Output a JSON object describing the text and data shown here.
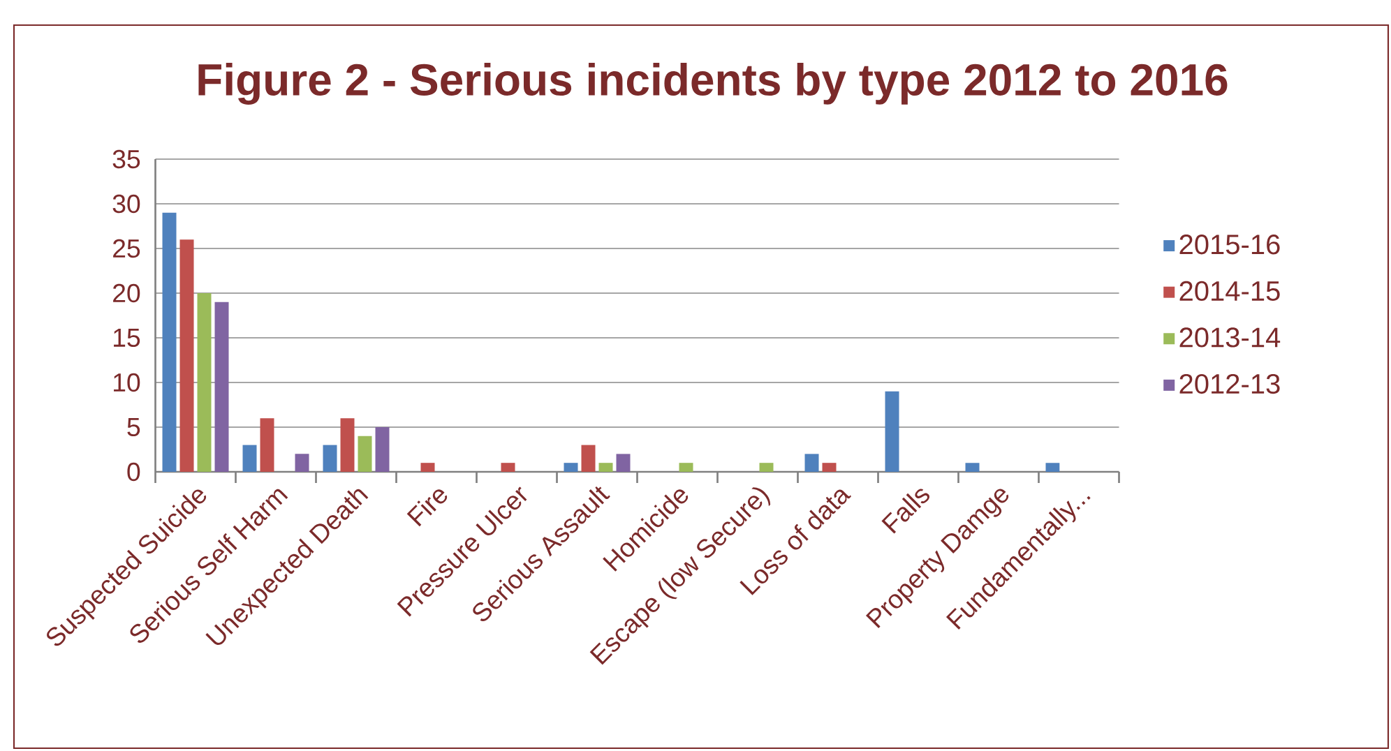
{
  "chart_data": {
    "type": "bar",
    "title": "Figure 2 - Serious incidents by type 2012 to 2016",
    "categories": [
      "Suspected Suicide",
      "Serious Self Harm",
      "Unexpected Death",
      "Fire",
      "Pressure Ulcer",
      "Serious Assault",
      "Homicide",
      "Escape (low Secure)",
      "Loss of data",
      "Falls",
      "Property Damge",
      "Fundamentally..."
    ],
    "series": [
      {
        "name": "2015-16",
        "color": "#4f81bd",
        "values": [
          29,
          3,
          3,
          0,
          0,
          1,
          0,
          0,
          2,
          9,
          1,
          1
        ]
      },
      {
        "name": "2014-15",
        "color": "#c0504d",
        "values": [
          26,
          6,
          6,
          1,
          1,
          3,
          0,
          0,
          1,
          0,
          0,
          0
        ]
      },
      {
        "name": "2013-14",
        "color": "#9bbb59",
        "values": [
          20,
          0,
          4,
          0,
          0,
          1,
          1,
          1,
          0,
          0,
          0,
          0
        ]
      },
      {
        "name": "2012-13",
        "color": "#8064a2",
        "values": [
          19,
          2,
          5,
          0,
          0,
          2,
          0,
          0,
          0,
          0,
          0,
          0
        ]
      }
    ],
    "ylim": [
      0,
      35
    ],
    "yticks": [
      0,
      5,
      10,
      15,
      20,
      25,
      30,
      35
    ],
    "grid": "y",
    "legend": "right"
  }
}
